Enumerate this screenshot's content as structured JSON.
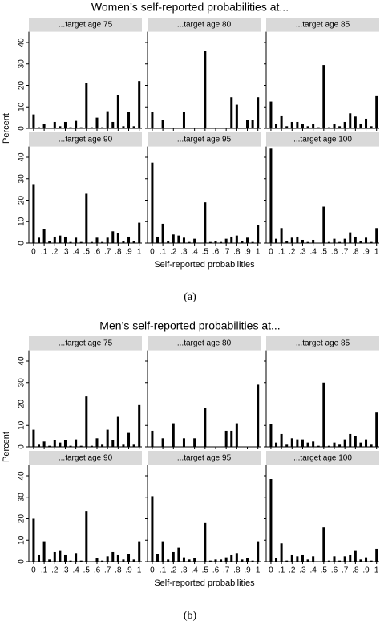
{
  "chart_data": [
    {
      "type": "bar",
      "title": "Women’s self-reported probabilities at...",
      "caption": "(a)",
      "ylabel": "Percent",
      "xlabel": "Self-reported probabilities",
      "color": "#000000",
      "x": [
        0,
        0.05,
        0.1,
        0.15,
        0.2,
        0.25,
        0.3,
        0.35,
        0.4,
        0.45,
        0.5,
        0.55,
        0.6,
        0.65,
        0.7,
        0.75,
        0.8,
        0.85,
        0.9,
        0.95,
        1
      ],
      "xlim": [
        -0.045,
        1.025
      ],
      "xticks": [
        0,
        {
          "value": 0.1,
          "label": ".1"
        },
        {
          "value": 0.2,
          "label": ".2"
        },
        {
          "value": 0.3,
          "label": ".3"
        },
        {
          "value": 0.4,
          "label": ".4"
        },
        {
          "value": 0.5,
          "label": ".5"
        },
        {
          "value": 0.6,
          "label": ".6"
        },
        {
          "value": 0.7,
          "label": ".7"
        },
        {
          "value": 0.8,
          "label": ".8"
        },
        {
          "value": 0.9,
          "label": ".9"
        },
        1
      ],
      "ylim": [
        0,
        45
      ],
      "yticks": [
        0,
        10,
        20,
        30,
        40
      ],
      "panels": [
        {
          "title": "...target age 75",
          "values": [
            6.5,
            0.5,
            2,
            0.3,
            3,
            1,
            3,
            0.5,
            3.5,
            0.5,
            21,
            0.5,
            5,
            0.5,
            8,
            3,
            15.5,
            1,
            7.5,
            1,
            22
          ]
        },
        {
          "title": "...target age 80",
          "values": [
            7.5,
            0,
            4,
            0,
            0,
            0,
            7.5,
            0,
            0,
            0,
            36,
            0,
            0,
            0,
            0,
            14.5,
            11,
            0,
            4,
            4,
            14.5
          ]
        },
        {
          "title": "...target age 85",
          "values": [
            12.5,
            2,
            6,
            1,
            3,
            3,
            2,
            1,
            2,
            0.5,
            29.5,
            0.5,
            2,
            1,
            3,
            7,
            5.5,
            2,
            4.5,
            1,
            15
          ]
        },
        {
          "title": "...target age 90",
          "values": [
            27.5,
            2.5,
            6.5,
            1,
            3,
            3.5,
            3,
            0.5,
            2.5,
            0.5,
            23,
            0.5,
            2.5,
            0.5,
            2.5,
            5.5,
            4.5,
            1,
            3,
            1,
            9.5
          ]
        },
        {
          "title": "...target age 95",
          "values": [
            37.5,
            3,
            9,
            1,
            4,
            3.5,
            2.5,
            0.5,
            2,
            0,
            19,
            0.5,
            1,
            0.5,
            2,
            3,
            3.5,
            1,
            2.5,
            0.5,
            8.5
          ]
        },
        {
          "title": "...target age 100",
          "values": [
            44,
            2,
            7,
            1,
            2.5,
            3,
            1.5,
            0.5,
            1.5,
            0,
            17,
            0.5,
            2,
            0.5,
            2,
            5,
            3,
            1,
            2.5,
            0.5,
            7
          ]
        }
      ]
    },
    {
      "type": "bar",
      "title": "Men’s self-reported probabilities at...",
      "caption": "(b)",
      "ylabel": "Percent",
      "xlabel": "Self-reported probabilities",
      "color": "#000000",
      "x": [
        0,
        0.05,
        0.1,
        0.15,
        0.2,
        0.25,
        0.3,
        0.35,
        0.4,
        0.45,
        0.5,
        0.55,
        0.6,
        0.65,
        0.7,
        0.75,
        0.8,
        0.85,
        0.9,
        0.95,
        1
      ],
      "xlim": [
        -0.045,
        1.025
      ],
      "xticks": [
        0,
        {
          "value": 0.1,
          "label": ".1"
        },
        {
          "value": 0.2,
          "label": ".2"
        },
        {
          "value": 0.3,
          "label": ".3"
        },
        {
          "value": 0.4,
          "label": ".4"
        },
        {
          "value": 0.5,
          "label": ".5"
        },
        {
          "value": 0.6,
          "label": ".6"
        },
        {
          "value": 0.7,
          "label": ".7"
        },
        {
          "value": 0.8,
          "label": ".8"
        },
        {
          "value": 0.9,
          "label": ".9"
        },
        1
      ],
      "ylim": [
        0,
        45
      ],
      "yticks": [
        0,
        10,
        20,
        30,
        40
      ],
      "panels": [
        {
          "title": "...target age 75",
          "values": [
            8,
            1,
            2.5,
            0.5,
            3,
            2,
            3,
            0.5,
            3.5,
            0.5,
            23.5,
            0.5,
            4,
            1,
            8,
            3,
            14,
            1,
            6.5,
            1,
            19.5
          ]
        },
        {
          "title": "...target age 80",
          "values": [
            7.5,
            0,
            4,
            0,
            11,
            0,
            4,
            0,
            4,
            0,
            18,
            0,
            0,
            0,
            7.5,
            7.5,
            11,
            0,
            0,
            0,
            29
          ]
        },
        {
          "title": "...target age 85",
          "values": [
            10.5,
            2,
            6,
            1,
            4,
            3.5,
            3.5,
            2,
            2.5,
            0.5,
            30,
            0.5,
            2,
            1,
            3.5,
            6,
            5,
            2,
            3.5,
            1,
            16
          ]
        },
        {
          "title": "...target age 90",
          "values": [
            20,
            3,
            9.5,
            1,
            4.5,
            5,
            3,
            0.5,
            4,
            0.5,
            23.5,
            0,
            1.5,
            0.5,
            2.5,
            4.5,
            3,
            1,
            3.5,
            1,
            9.5
          ]
        },
        {
          "title": "...target age 95",
          "values": [
            30.5,
            3.5,
            9.5,
            1,
            4.5,
            6.5,
            2,
            1,
            1.5,
            0,
            18,
            0.5,
            1,
            1,
            2,
            3,
            4,
            1,
            1.5,
            0.5,
            9.5
          ]
        },
        {
          "title": "...target age 100",
          "values": [
            38.5,
            1.5,
            8.5,
            0.5,
            3,
            2.5,
            3,
            1,
            2.5,
            0,
            16,
            0.5,
            2.5,
            0.5,
            2.5,
            3,
            5,
            1,
            2,
            0.5,
            6
          ]
        }
      ]
    }
  ]
}
